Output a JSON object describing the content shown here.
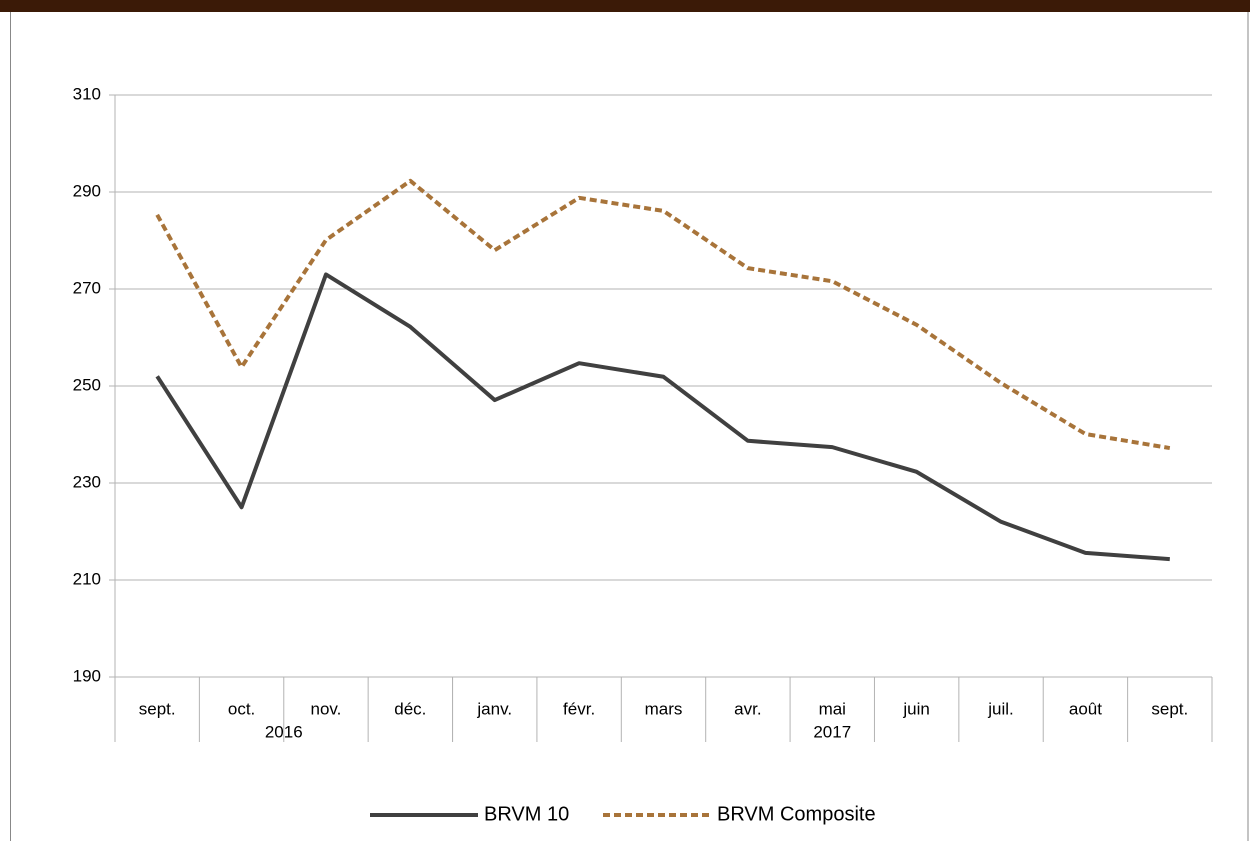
{
  "chart_data": {
    "type": "line",
    "categories": [
      "sept.",
      "oct.",
      "nov.",
      "déc.",
      "janv.",
      "févr.",
      "mars",
      "avr.",
      "mai",
      "juin",
      "juil.",
      "août",
      "sept."
    ],
    "x_groups": [
      {
        "label": "2016",
        "span": 4
      },
      {
        "label": "2017",
        "span": 9
      }
    ],
    "series": [
      {
        "name": "BRVM 10",
        "color": "#404040",
        "dash": false,
        "values": [
          252,
          225,
          273,
          262.2,
          247.1,
          254.7,
          251.9,
          238.7,
          237.4,
          232.3,
          222,
          215.6,
          214.3
        ]
      },
      {
        "name": "BRVM Composite",
        "color": "#a8743a",
        "dash": true,
        "values": [
          285.3,
          253.9,
          280.1,
          292.3,
          278,
          288.8,
          286.1,
          274.3,
          271.6,
          262.6,
          250.6,
          240.1,
          237.2
        ]
      }
    ],
    "ylim": [
      190,
      310
    ],
    "yticks": [
      190,
      210,
      230,
      250,
      270,
      290,
      310
    ],
    "grid": true,
    "legend": "bottom"
  }
}
